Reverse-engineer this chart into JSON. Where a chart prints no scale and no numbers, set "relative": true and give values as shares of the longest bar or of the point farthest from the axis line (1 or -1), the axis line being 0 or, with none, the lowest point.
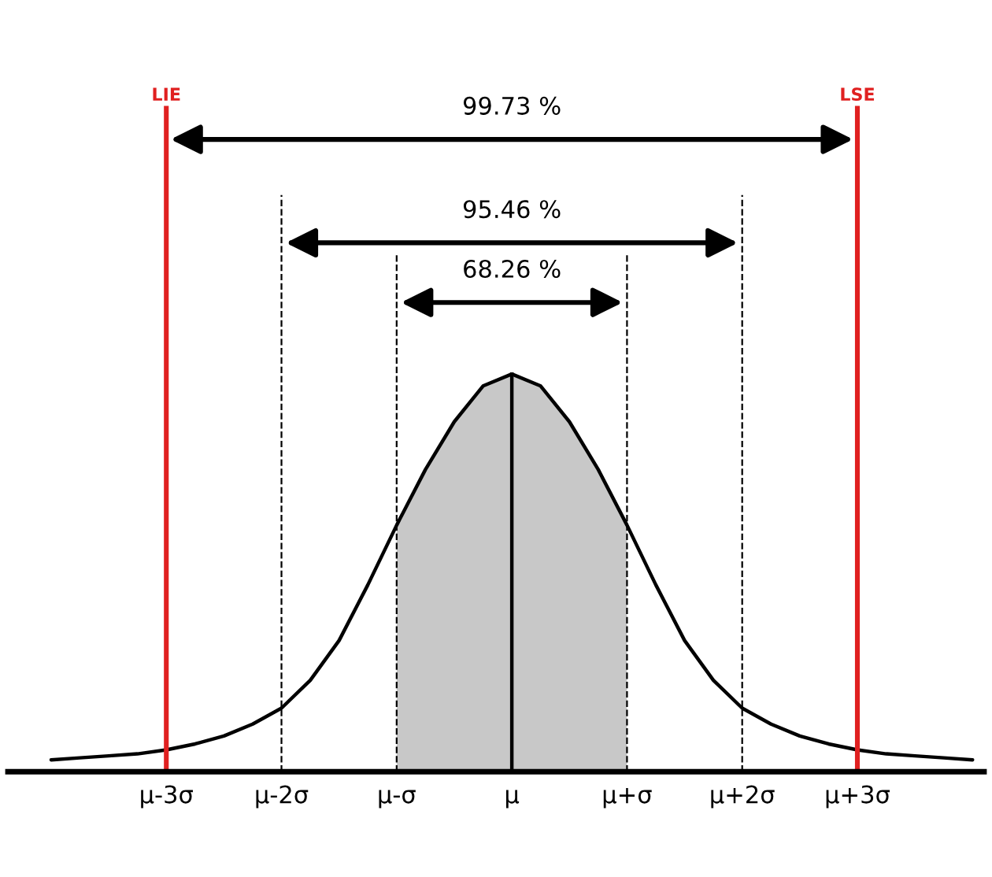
{
  "chart_data": {
    "type": "line",
    "relative": true,
    "tick_labels": "x",
    "grid": false,
    "legend": false,
    "marker": "none",
    "line_style": "solid",
    "categories": [
      null,
      null,
      null,
      null,
      "μ-3σ",
      null,
      null,
      null,
      "μ-2σ",
      null,
      null,
      null,
      "μ-σ",
      null,
      null,
      null,
      "μ",
      null,
      null,
      null,
      "μ+σ",
      null,
      null,
      null,
      "μ+2σ",
      null,
      null,
      null,
      "μ+3σ",
      null,
      null,
      null,
      null
    ],
    "series": [
      {
        "color": "#000000",
        "values": [
          0.03,
          0.035,
          0.04,
          0.045,
          0.055,
          0.07,
          0.09,
          0.12,
          0.16,
          0.23,
          0.33,
          0.47,
          0.62,
          0.76,
          0.88,
          0.97,
          1.0,
          0.97,
          0.88,
          0.76,
          0.62,
          0.47,
          0.33,
          0.23,
          0.16,
          0.12,
          0.09,
          0.07,
          0.055,
          0.045,
          0.04,
          0.035,
          0.03
        ]
      }
    ],
    "bands": [
      {
        "axis": "x",
        "from": "μ-σ",
        "to": "μ+σ",
        "color": "#c8c8c8"
      }
    ],
    "ref_lines": [
      {
        "axis": "x",
        "value": "μ-3σ",
        "label": "LIE",
        "color": "#e02020",
        "line_style": "solid"
      },
      {
        "axis": "x",
        "value": "μ+3σ",
        "label": "LSE",
        "color": "#e02020",
        "line_style": "solid"
      },
      {
        "axis": "x",
        "value": "μ-2σ",
        "color": "#000000",
        "line_style": "dashed"
      },
      {
        "axis": "x",
        "value": "μ+2σ",
        "color": "#000000",
        "line_style": "dashed"
      },
      {
        "axis": "x",
        "value": "μ-σ",
        "color": "#000000",
        "line_style": "dashed"
      },
      {
        "axis": "x",
        "value": "μ+σ",
        "color": "#000000",
        "line_style": "dashed"
      },
      {
        "axis": "x",
        "value": "μ",
        "color": "#000000",
        "line_style": "solid"
      }
    ],
    "annotations": [
      "99.73 %",
      "95.46 %",
      "68.26 %"
    ]
  }
}
